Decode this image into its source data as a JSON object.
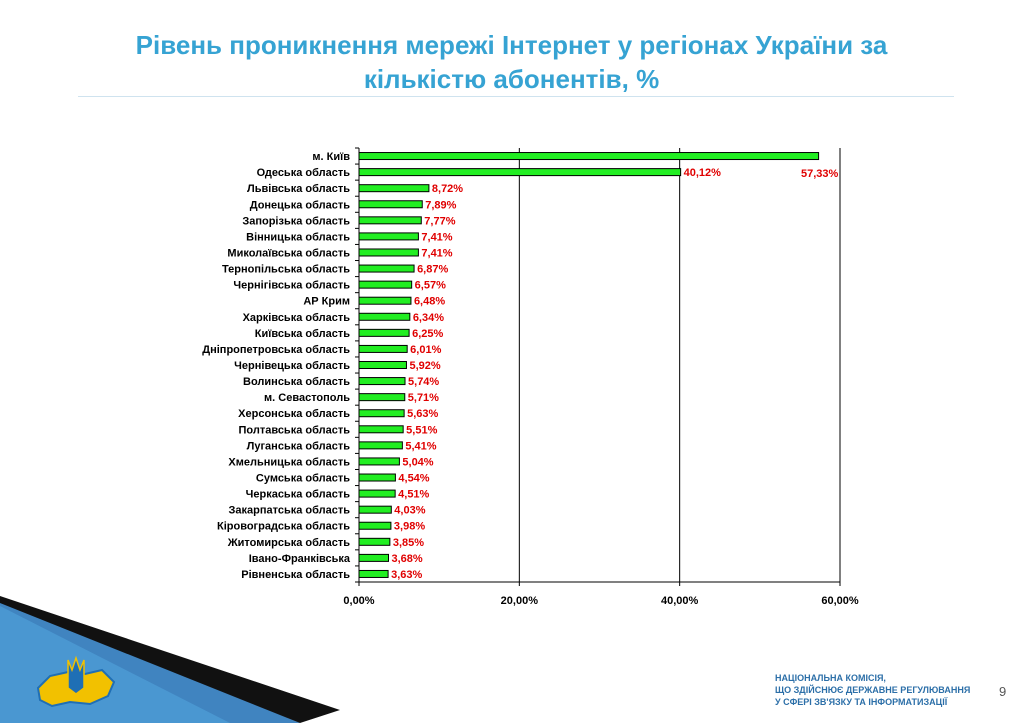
{
  "slide": {
    "title_line1": "Рівень проникнення мережі Інтернет у регіонах України за",
    "title_line2": "кількістю абонентів, %",
    "footer_line1": "НАЦІОНАЛЬНА КОМІСІЯ,",
    "footer_line2": "ЩО ЗДІЙСНЮЄ ДЕРЖАВНЕ РЕГУЛЮВАННЯ",
    "footer_line3": "У СФЕРІ ЗВ'ЯЗКУ ТА ІНФОРМАТИЗАЦІЇ",
    "page_number": "9",
    "decor_colors": {
      "blue": "#1f6fb5",
      "yellow": "#f2c100",
      "dark": "#111111"
    }
  },
  "chart_data": {
    "type": "bar",
    "orientation": "horizontal",
    "categories": [
      "м. Київ",
      "Одеська область",
      "Львівська область",
      "Донецька область",
      "Запорізька область",
      "Вінницька область",
      "Миколаївська область",
      "Тернопільська область",
      "Чернігівська область",
      "АР Крим",
      "Харківська область",
      "Київська область",
      "Дніпропетровська область",
      "Чернівецька область ",
      "Волинська область",
      "м. Севастополь",
      "Херсонська область",
      "Полтавська область",
      "Луганська область",
      "Хмельницька область",
      "Сумська область",
      "Черкаська область",
      "Закарпатська область",
      "Кіровоградська область",
      "Житомирська область",
      "Івано-Франківська",
      "Рівненська область"
    ],
    "values": [
      57.33,
      40.12,
      8.72,
      7.89,
      7.77,
      7.41,
      7.41,
      6.87,
      6.57,
      6.48,
      6.34,
      6.25,
      6.01,
      5.92,
      5.74,
      5.71,
      5.63,
      5.51,
      5.41,
      5.04,
      4.54,
      4.51,
      4.03,
      3.98,
      3.85,
      3.68,
      3.63
    ],
    "data_labels": [
      "57,33%",
      "40,12%",
      "8,72%",
      "7,89%",
      "7,77%",
      "7,41%",
      "7,41%",
      "6,87%",
      "6,57%",
      "6,48%",
      "6,34%",
      "6,25%",
      "6,01%",
      "5,92%",
      "5,74%",
      "5,71%",
      "5,63%",
      "5,51%",
      "5,41%",
      "5,04%",
      "4,54%",
      "4,51%",
      "4,03%",
      "3,98%",
      "3,85%",
      "3,68%",
      "3,63%"
    ],
    "xlim": [
      0,
      60
    ],
    "xticks": [
      0,
      20,
      40,
      60
    ],
    "xtick_labels": [
      "0,00%",
      "20,00%",
      "40,00%",
      "60,00%"
    ],
    "grid": "vertical",
    "legend": "none",
    "bar_color": "#22ee22",
    "bar_edge_color": "#000000",
    "label_color": "#e00000"
  }
}
